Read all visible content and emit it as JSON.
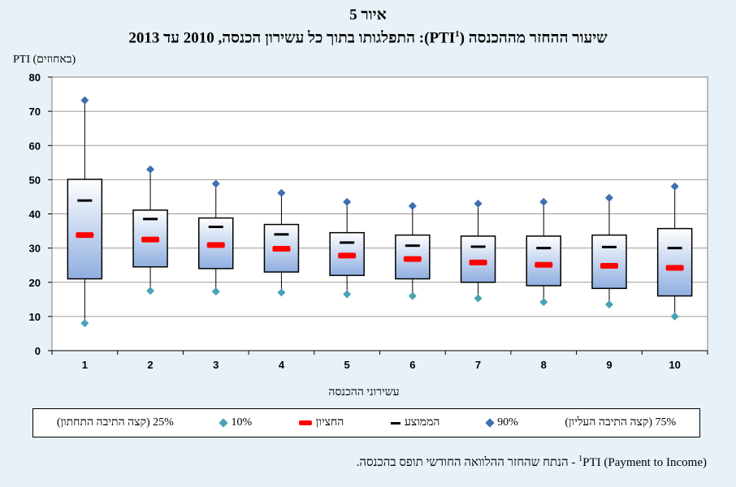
{
  "figure_label": "איור 5",
  "figure_title": "שיעור ההחזר מההכנסה (PTI",
  "figure_title_sup": "1",
  "figure_title_rest": "): התפלגותו בתוך כל עשירון הכנסה, 2010 עד 2013",
  "legend": {
    "p25": "25% (קצה התיבה התחתון)",
    "p10": "10%",
    "median": "החציון",
    "mean": "הממוצע",
    "p90": "90%",
    "p75": "75% (קצה התיבה העליון)"
  },
  "footnote": {
    "sup": "1",
    "text": "PTI (Payment to Income) - הנתח שהחזר ההלוואה החודשי תופס בהכנסה."
  },
  "colors": {
    "p90": "#3f6fb0",
    "p10": "#4aa3b5",
    "median": "#ff0000",
    "mean": "#000000",
    "box_top": "#ffffff",
    "box_bottom": "#8faee0"
  },
  "chart_data": {
    "type": "box",
    "title": "שיעור ההחזר מההכנסה (PTI1): התפלגותו בתוך כל עשירון הכנסה, 2010 עד 2013",
    "xlabel": "עשירוני ההכנסה",
    "ylabel": "PTI (באחוזים)",
    "ylim": [
      0,
      80
    ],
    "yticks": [
      0,
      10,
      20,
      30,
      40,
      50,
      60,
      70,
      80
    ],
    "categories": [
      "1",
      "2",
      "3",
      "4",
      "5",
      "6",
      "7",
      "8",
      "9",
      "10"
    ],
    "series": [
      {
        "name": "10%",
        "values": [
          8,
          17.5,
          17.3,
          17,
          16.5,
          16,
          15.3,
          14.2,
          13.5,
          10
        ]
      },
      {
        "name": "25%",
        "values": [
          21,
          24.5,
          24,
          23,
          22,
          21,
          20,
          19,
          18.2,
          16
        ]
      },
      {
        "name": "החציון",
        "values": [
          33.8,
          32.5,
          30.9,
          29.8,
          27.8,
          26.8,
          25.8,
          25.1,
          24.8,
          24.2
        ]
      },
      {
        "name": "הממוצע",
        "values": [
          43.9,
          38.5,
          36.2,
          34,
          31.6,
          30.7,
          30.4,
          30,
          30.3,
          30
        ]
      },
      {
        "name": "75%",
        "values": [
          50.1,
          41.1,
          38.8,
          36.9,
          34.5,
          33.8,
          33.5,
          33.5,
          33.8,
          35.7
        ]
      },
      {
        "name": "90%",
        "values": [
          73.2,
          53,
          48.8,
          46.1,
          43.5,
          42.3,
          43,
          43.5,
          44.7,
          48
        ]
      }
    ]
  }
}
